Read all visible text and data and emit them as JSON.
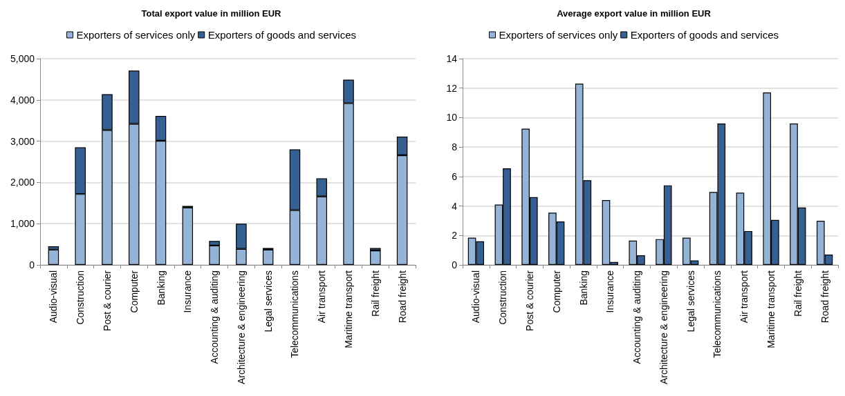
{
  "chart_data": [
    {
      "type": "bar",
      "title": "Total export value in million EUR",
      "stacked": true,
      "legend": "top",
      "grid": "y",
      "categories": [
        "Audio-visual",
        "Construction",
        "Post & courier",
        "Computer",
        "Banking",
        "Insurance",
        "Accounting & auditing",
        "Architecture & engineering",
        "Legal services",
        "Telecommunications",
        "Air transport",
        "Maritime transport",
        "Rail freight",
        "Road freight"
      ],
      "series": [
        {
          "name": "Exporters of services only",
          "color": "#95b3d7",
          "values": [
            370,
            1720,
            3270,
            3420,
            3010,
            1390,
            470,
            390,
            370,
            1330,
            1660,
            3920,
            350,
            2660
          ]
        },
        {
          "name": "Exporters of goods and services",
          "color": "#376092",
          "values": [
            80,
            1130,
            870,
            1290,
            600,
            40,
            110,
            610,
            40,
            1470,
            440,
            570,
            60,
            450
          ]
        }
      ],
      "ylim": [
        0,
        5000
      ],
      "yticks": [
        0,
        {
          "value": 1000,
          "label": "1,000"
        },
        {
          "value": 2000,
          "label": "2,000"
        },
        {
          "value": 3000,
          "label": "3,000"
        },
        {
          "value": 4000,
          "label": "4,000"
        },
        {
          "value": 5000,
          "label": "5,000"
        }
      ]
    },
    {
      "type": "bar",
      "title": "Average export value in million EUR",
      "legend": "top",
      "grid": "y",
      "categories": [
        "Audio-visual",
        "Construction",
        "Post & courier",
        "Computer",
        "Banking",
        "Insurance",
        "Accounting & auditing",
        "Architecture & engineering",
        "Legal services",
        "Telecommunications",
        "Air transport",
        "Maritime transport",
        "Rail freight",
        "Road freight"
      ],
      "series": [
        {
          "name": "Exporters of services only",
          "color": "#95b3d7",
          "values": [
            1.85,
            4.1,
            9.25,
            3.55,
            12.3,
            4.4,
            1.65,
            1.75,
            1.85,
            4.95,
            4.9,
            11.7,
            9.6,
            3.0
          ]
        },
        {
          "name": "Exporters of goods and services",
          "color": "#376092",
          "values": [
            1.6,
            6.55,
            4.6,
            2.95,
            5.75,
            0.2,
            0.65,
            5.4,
            0.3,
            9.6,
            2.3,
            3.05,
            3.9,
            0.7
          ]
        }
      ],
      "ylim": [
        0,
        14
      ],
      "yticks": [
        0,
        2,
        4,
        6,
        8,
        10,
        12,
        14
      ]
    }
  ]
}
